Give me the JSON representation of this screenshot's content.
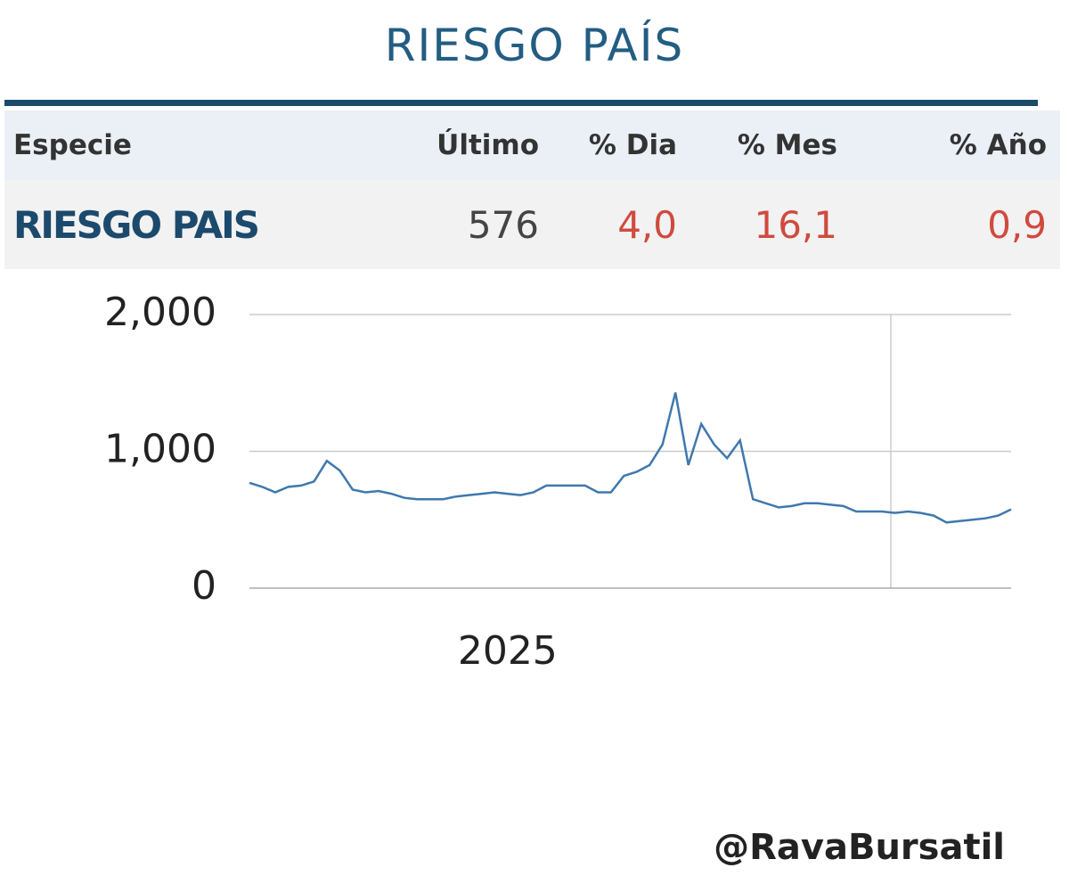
{
  "header": {
    "title": "RIESGO PAÍS"
  },
  "table": {
    "columns": [
      "Especie",
      "Último",
      "% Dia",
      "% Mes",
      "% Año"
    ],
    "rows": [
      [
        "RIESGO PAIS",
        "576",
        "4,0",
        "16,1",
        "0,9"
      ]
    ]
  },
  "chart_data": {
    "type": "line",
    "color": "#3f78ad",
    "categories": [
      null,
      null,
      null,
      null,
      null,
      null,
      null,
      null,
      null,
      null,
      null,
      null,
      null,
      null,
      null,
      null,
      null,
      null,
      null,
      null,
      "2025",
      null,
      null,
      null,
      null,
      null,
      null,
      null,
      null,
      null,
      null,
      null,
      null,
      null,
      null,
      null,
      null,
      null,
      null,
      null,
      null,
      null,
      null,
      null,
      null,
      null,
      null,
      null,
      null,
      null,
      null,
      null,
      null,
      null,
      null,
      null,
      null,
      null,
      null,
      null
    ],
    "values": [
      770,
      740,
      700,
      740,
      750,
      780,
      930,
      860,
      720,
      700,
      710,
      690,
      660,
      650,
      650,
      650,
      670,
      680,
      690,
      700,
      690,
      680,
      700,
      750,
      750,
      750,
      750,
      700,
      700,
      820,
      850,
      900,
      1050,
      1430,
      900,
      1200,
      1050,
      950,
      1080,
      650,
      620,
      590,
      600,
      620,
      620,
      610,
      600,
      560,
      560,
      560,
      550,
      560,
      550,
      530,
      480,
      490,
      500,
      510,
      530,
      576
    ],
    "ylim": [
      0,
      2000
    ],
    "yticks": [
      0,
      {
        "value": 1000,
        "label": "1,000"
      },
      {
        "value": 2000,
        "label": "2,000"
      }
    ],
    "grid": true
  },
  "footer": {
    "handle": "@RavaBursatil"
  }
}
